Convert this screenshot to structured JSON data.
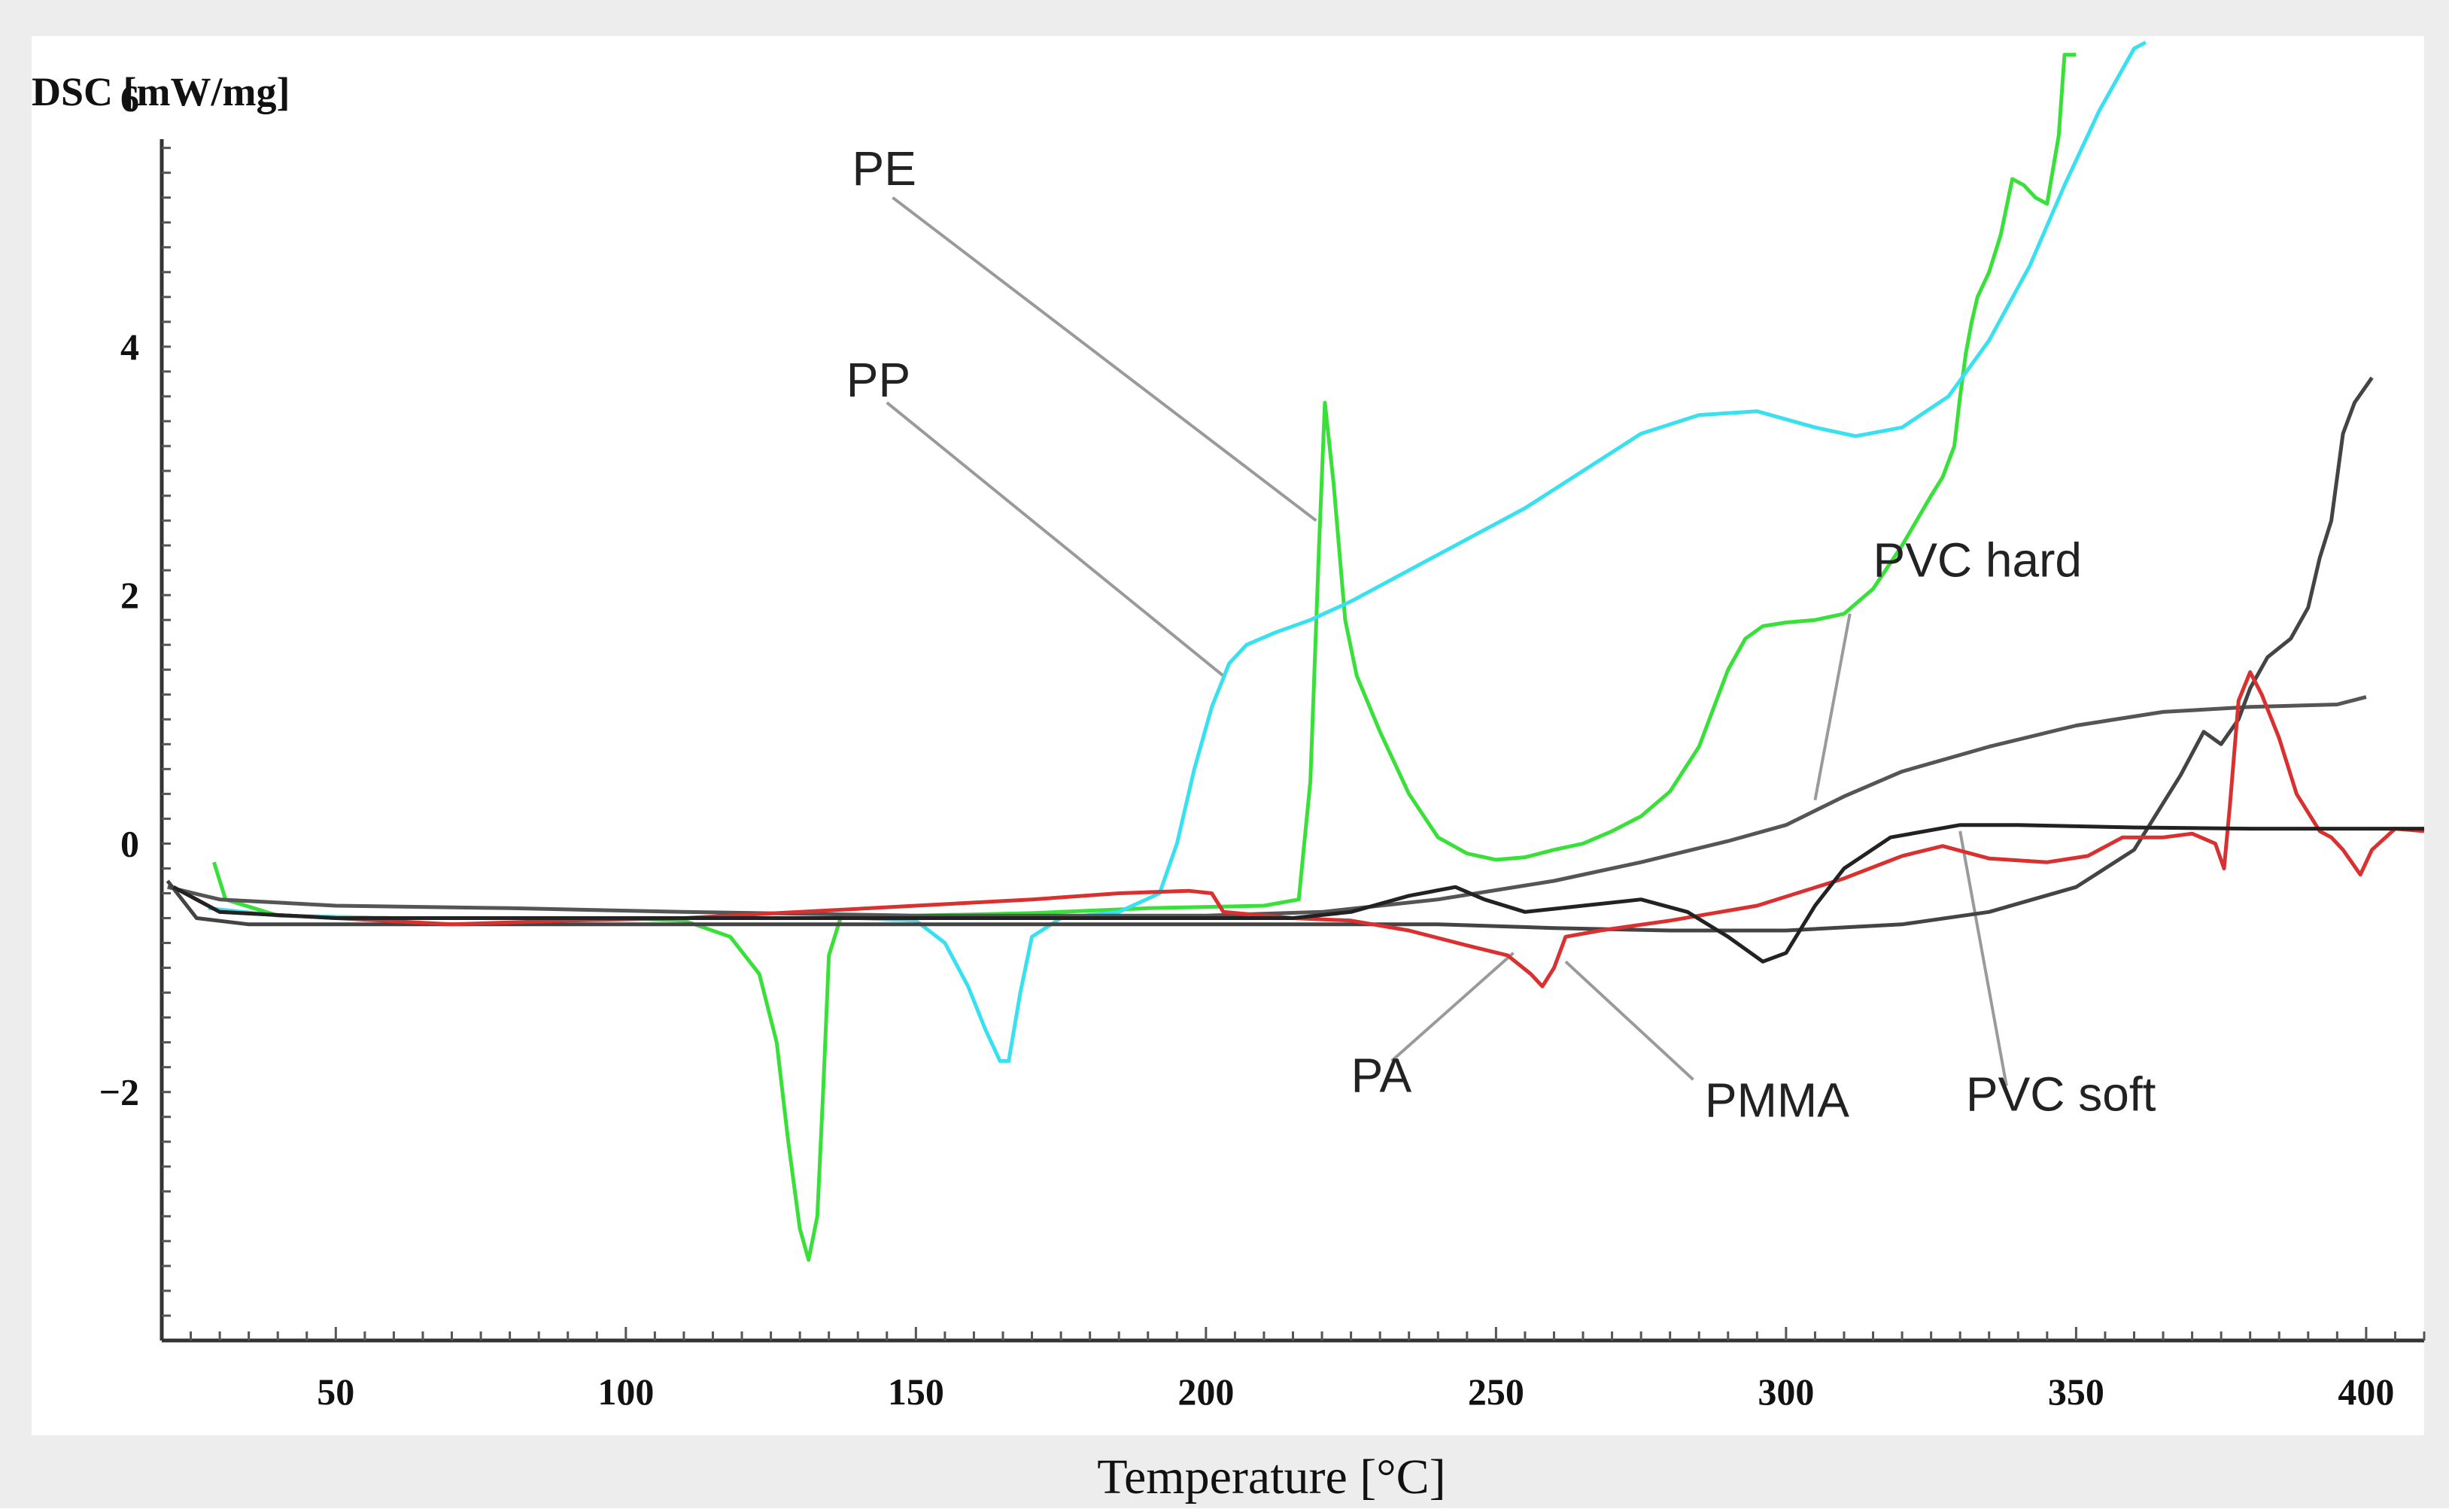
{
  "chart_data": {
    "type": "line",
    "title": "",
    "ylabel": "DSC [mW/mg]",
    "xlabel": "Temperature [°C]",
    "xlim": [
      20,
      410
    ],
    "ylim": [
      -4.0,
      6.5
    ],
    "x_ticks": [
      50,
      100,
      150,
      200,
      250,
      300,
      350,
      400
    ],
    "y_ticks": [
      -2,
      0,
      2,
      4,
      6
    ],
    "y_tick_labels": [
      "−2",
      "0",
      "2",
      "4",
      "6"
    ],
    "grid": false,
    "series": [
      {
        "name": "PE",
        "color": "#39e039",
        "points": [
          [
            29,
            -0.15
          ],
          [
            31,
            -0.45
          ],
          [
            40,
            -0.58
          ],
          [
            60,
            -0.6
          ],
          [
            80,
            -0.6
          ],
          [
            100,
            -0.6
          ],
          [
            110,
            -0.62
          ],
          [
            118,
            -0.75
          ],
          [
            123,
            -1.05
          ],
          [
            126,
            -1.6
          ],
          [
            128,
            -2.4
          ],
          [
            130,
            -3.1
          ],
          [
            131.5,
            -3.35
          ],
          [
            133,
            -3.0
          ],
          [
            134,
            -2.0
          ],
          [
            135,
            -0.9
          ],
          [
            137,
            -0.6
          ],
          [
            150,
            -0.58
          ],
          [
            170,
            -0.56
          ],
          [
            190,
            -0.52
          ],
          [
            210,
            -0.5
          ],
          [
            216,
            -0.45
          ],
          [
            218,
            0.5
          ],
          [
            219.5,
            2.4
          ],
          [
            220.5,
            3.55
          ],
          [
            222,
            2.9
          ],
          [
            224,
            1.8
          ],
          [
            226,
            1.35
          ],
          [
            230,
            0.9
          ],
          [
            235,
            0.4
          ],
          [
            240,
            0.05
          ],
          [
            245,
            -0.08
          ],
          [
            250,
            -0.13
          ],
          [
            255,
            -0.11
          ],
          [
            260,
            -0.05
          ],
          [
            265,
            0.0
          ],
          [
            270,
            0.1
          ],
          [
            275,
            0.22
          ],
          [
            280,
            0.42
          ],
          [
            285,
            0.78
          ],
          [
            290,
            1.4
          ],
          [
            293,
            1.65
          ],
          [
            296,
            1.75
          ],
          [
            300,
            1.78
          ],
          [
            305,
            1.8
          ],
          [
            310,
            1.85
          ],
          [
            315,
            2.05
          ],
          [
            320,
            2.4
          ],
          [
            325,
            2.8
          ],
          [
            327,
            2.95
          ],
          [
            329,
            3.2
          ],
          [
            330,
            3.6
          ],
          [
            331,
            3.95
          ],
          [
            332,
            4.2
          ],
          [
            333,
            4.4
          ],
          [
            335,
            4.6
          ],
          [
            337,
            4.9
          ],
          [
            339,
            5.35
          ],
          [
            341,
            5.3
          ],
          [
            343,
            5.2
          ],
          [
            345,
            5.15
          ],
          [
            347,
            5.7
          ],
          [
            348,
            6.35
          ],
          [
            350,
            6.35
          ]
        ]
      },
      {
        "name": "PP",
        "color": "#38e0f0",
        "points": [
          [
            28,
            -0.52
          ],
          [
            40,
            -0.58
          ],
          [
            60,
            -0.6
          ],
          [
            80,
            -0.6
          ],
          [
            100,
            -0.6
          ],
          [
            120,
            -0.6
          ],
          [
            140,
            -0.6
          ],
          [
            150,
            -0.62
          ],
          [
            155,
            -0.8
          ],
          [
            159,
            -1.15
          ],
          [
            162,
            -1.5
          ],
          [
            164.5,
            -1.75
          ],
          [
            166,
            -1.75
          ],
          [
            168,
            -1.2
          ],
          [
            170,
            -0.75
          ],
          [
            175,
            -0.6
          ],
          [
            185,
            -0.55
          ],
          [
            192,
            -0.4
          ],
          [
            195,
            0.0
          ],
          [
            198,
            0.6
          ],
          [
            201,
            1.1
          ],
          [
            204,
            1.45
          ],
          [
            207,
            1.6
          ],
          [
            212,
            1.7
          ],
          [
            218,
            1.8
          ],
          [
            225,
            1.95
          ],
          [
            235,
            2.2
          ],
          [
            245,
            2.45
          ],
          [
            255,
            2.7
          ],
          [
            265,
            3.0
          ],
          [
            275,
            3.3
          ],
          [
            285,
            3.45
          ],
          [
            295,
            3.48
          ],
          [
            305,
            3.35
          ],
          [
            312,
            3.28
          ],
          [
            320,
            3.35
          ],
          [
            328,
            3.6
          ],
          [
            335,
            4.05
          ],
          [
            342,
            4.65
          ],
          [
            348,
            5.3
          ],
          [
            354,
            5.9
          ],
          [
            360,
            6.4
          ],
          [
            362,
            6.45
          ]
        ]
      },
      {
        "name": "PVC hard",
        "color": "#555555",
        "points": [
          [
            21,
            -0.35
          ],
          [
            30,
            -0.45
          ],
          [
            50,
            -0.5
          ],
          [
            80,
            -0.52
          ],
          [
            110,
            -0.55
          ],
          [
            150,
            -0.58
          ],
          [
            180,
            -0.58
          ],
          [
            200,
            -0.58
          ],
          [
            220,
            -0.55
          ],
          [
            240,
            -0.45
          ],
          [
            260,
            -0.3
          ],
          [
            275,
            -0.15
          ],
          [
            290,
            0.02
          ],
          [
            300,
            0.15
          ],
          [
            310,
            0.38
          ],
          [
            320,
            0.58
          ],
          [
            335,
            0.78
          ],
          [
            350,
            0.95
          ],
          [
            365,
            1.06
          ],
          [
            380,
            1.1
          ],
          [
            395,
            1.12
          ],
          [
            400,
            1.18
          ]
        ]
      },
      {
        "name": "PVC soft",
        "color": "#444444",
        "points": [
          [
            21,
            -0.3
          ],
          [
            26,
            -0.6
          ],
          [
            35,
            -0.65
          ],
          [
            60,
            -0.65
          ],
          [
            100,
            -0.65
          ],
          [
            150,
            -0.65
          ],
          [
            200,
            -0.65
          ],
          [
            240,
            -0.65
          ],
          [
            260,
            -0.68
          ],
          [
            280,
            -0.7
          ],
          [
            300,
            -0.7
          ],
          [
            320,
            -0.65
          ],
          [
            335,
            -0.55
          ],
          [
            350,
            -0.35
          ],
          [
            360,
            -0.05
          ],
          [
            368,
            0.55
          ],
          [
            372,
            0.9
          ],
          [
            375,
            0.8
          ],
          [
            378,
            1.0
          ],
          [
            380,
            1.25
          ],
          [
            383,
            1.5
          ],
          [
            387,
            1.65
          ],
          [
            390,
            1.9
          ],
          [
            392,
            2.3
          ],
          [
            394,
            2.6
          ],
          [
            396,
            3.3
          ],
          [
            398,
            3.55
          ],
          [
            401,
            3.75
          ]
        ]
      },
      {
        "name": "PA",
        "color": "#d93030",
        "points": [
          [
            22,
            -0.35
          ],
          [
            30,
            -0.55
          ],
          [
            50,
            -0.6
          ],
          [
            70,
            -0.65
          ],
          [
            90,
            -0.62
          ],
          [
            110,
            -0.6
          ],
          [
            130,
            -0.55
          ],
          [
            150,
            -0.5
          ],
          [
            170,
            -0.45
          ],
          [
            185,
            -0.4
          ],
          [
            197,
            -0.38
          ],
          [
            201,
            -0.4
          ],
          [
            203,
            -0.55
          ],
          [
            215,
            -0.6
          ],
          [
            225,
            -0.62
          ],
          [
            235,
            -0.7
          ],
          [
            245,
            -0.82
          ],
          [
            252,
            -0.9
          ],
          [
            256,
            -1.05
          ],
          [
            258,
            -1.15
          ],
          [
            260,
            -1.0
          ],
          [
            262,
            -0.75
          ],
          [
            268,
            -0.7
          ],
          [
            280,
            -0.62
          ],
          [
            295,
            -0.5
          ],
          [
            310,
            -0.28
          ],
          [
            320,
            -0.1
          ],
          [
            327,
            -0.02
          ],
          [
            335,
            -0.12
          ],
          [
            345,
            -0.15
          ],
          [
            352,
            -0.1
          ],
          [
            358,
            0.05
          ],
          [
            365,
            0.05
          ],
          [
            370,
            0.08
          ],
          [
            374,
            0.0
          ],
          [
            375.5,
            -0.2
          ],
          [
            376.5,
            0.3
          ],
          [
            378,
            1.15
          ],
          [
            380,
            1.38
          ],
          [
            382,
            1.2
          ],
          [
            385,
            0.85
          ],
          [
            388,
            0.4
          ],
          [
            392,
            0.1
          ],
          [
            394,
            0.05
          ],
          [
            396,
            -0.05
          ],
          [
            399,
            -0.25
          ],
          [
            401,
            -0.05
          ],
          [
            405,
            0.12
          ],
          [
            410,
            0.1
          ]
        ]
      },
      {
        "name": "PMMA",
        "color": "#222222",
        "points": [
          [
            22,
            -0.35
          ],
          [
            30,
            -0.55
          ],
          [
            50,
            -0.6
          ],
          [
            80,
            -0.6
          ],
          [
            110,
            -0.6
          ],
          [
            140,
            -0.6
          ],
          [
            170,
            -0.6
          ],
          [
            200,
            -0.6
          ],
          [
            215,
            -0.6
          ],
          [
            225,
            -0.55
          ],
          [
            235,
            -0.42
          ],
          [
            243,
            -0.35
          ],
          [
            248,
            -0.45
          ],
          [
            255,
            -0.55
          ],
          [
            265,
            -0.5
          ],
          [
            275,
            -0.45
          ],
          [
            283,
            -0.55
          ],
          [
            290,
            -0.75
          ],
          [
            296,
            -0.95
          ],
          [
            300,
            -0.88
          ],
          [
            305,
            -0.5
          ],
          [
            310,
            -0.2
          ],
          [
            318,
            0.05
          ],
          [
            330,
            0.15
          ],
          [
            340,
            0.15
          ],
          [
            360,
            0.13
          ],
          [
            380,
            0.12
          ],
          [
            400,
            0.12
          ],
          [
            410,
            0.12
          ]
        ]
      }
    ],
    "annotations": [
      {
        "label": "PE",
        "text_at": [
          139,
          5.3
        ],
        "leader_from": [
          146,
          5.2
        ],
        "leader_to": [
          219,
          2.6
        ]
      },
      {
        "label": "PP",
        "text_at": [
          138,
          3.6
        ],
        "leader_from": [
          145,
          3.55
        ],
        "leader_to": [
          203,
          1.35
        ]
      },
      {
        "label": "PVC hard",
        "text_at": [
          315,
          2.15
        ],
        "leader_from": [
          311,
          1.85
        ],
        "leader_to": [
          305,
          0.35
        ]
      },
      {
        "label": "PA",
        "text_at": [
          225,
          -2.0
        ],
        "leader_from": [
          232,
          -1.75
        ],
        "leader_to": [
          253,
          -0.88
        ]
      },
      {
        "label": "PMMA",
        "text_at": [
          286,
          -2.2
        ],
        "leader_from": [
          284,
          -1.9
        ],
        "leader_to": [
          262,
          -0.95
        ]
      },
      {
        "label": "PVC soft",
        "text_at": [
          331,
          -2.15
        ],
        "leader_from": [
          338,
          -1.95
        ],
        "leader_to": [
          330,
          0.1
        ]
      }
    ]
  }
}
